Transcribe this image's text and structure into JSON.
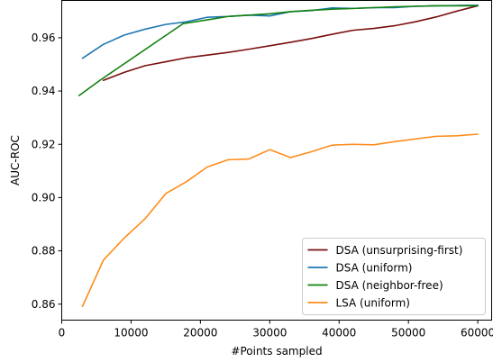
{
  "chart_data": {
    "type": "line",
    "title": "",
    "xlabel": "#Points sampled",
    "ylabel": "AUC-ROC",
    "xlim": [
      0,
      62000
    ],
    "ylim": [
      0.854,
      0.974
    ],
    "xticks": [
      0,
      10000,
      20000,
      30000,
      40000,
      50000,
      60000
    ],
    "yticks": [
      0.86,
      0.88,
      0.9,
      0.92,
      0.94,
      0.96
    ],
    "xtick_labels": [
      "0",
      "10000",
      "20000",
      "30000",
      "40000",
      "50000",
      "60000"
    ],
    "ytick_labels": [
      "0.86",
      "0.88",
      "0.90",
      "0.92",
      "0.94",
      "0.96"
    ],
    "grid": false,
    "legend_position": "lower-right",
    "series": [
      {
        "name": "DSA (unsurprising-first)",
        "color": "#7a0f0f",
        "points": [
          [
            6000,
            0.944
          ],
          [
            9000,
            0.947
          ],
          [
            12000,
            0.9495
          ],
          [
            15000,
            0.951
          ],
          [
            18000,
            0.9525
          ],
          [
            21000,
            0.9535
          ],
          [
            24000,
            0.9545
          ],
          [
            27000,
            0.9557
          ],
          [
            30000,
            0.957
          ],
          [
            33000,
            0.9583
          ],
          [
            36000,
            0.9597
          ],
          [
            39000,
            0.9613
          ],
          [
            42000,
            0.9628
          ],
          [
            45000,
            0.9635
          ],
          [
            48000,
            0.9645
          ],
          [
            51000,
            0.966
          ],
          [
            54000,
            0.9678
          ],
          [
            57000,
            0.97
          ],
          [
            60000,
            0.972
          ]
        ]
      },
      {
        "name": "DSA (uniform)",
        "color": "#1f77b4",
        "points": [
          [
            3000,
            0.9523
          ],
          [
            6000,
            0.9575
          ],
          [
            9000,
            0.961
          ],
          [
            12000,
            0.9632
          ],
          [
            15000,
            0.965
          ],
          [
            18000,
            0.966
          ],
          [
            21000,
            0.9677
          ],
          [
            24000,
            0.968
          ],
          [
            27000,
            0.9685
          ],
          [
            30000,
            0.9682
          ],
          [
            33000,
            0.9698
          ],
          [
            36000,
            0.9702
          ],
          [
            39000,
            0.9712
          ],
          [
            42000,
            0.971
          ],
          [
            45000,
            0.9713
          ],
          [
            48000,
            0.9713
          ],
          [
            51000,
            0.9718
          ],
          [
            54000,
            0.972
          ],
          [
            57000,
            0.9721
          ],
          [
            60000,
            0.9722
          ]
        ]
      },
      {
        "name": "DSA (neighbor-free)",
        "color": "#108010",
        "points": [
          [
            2500,
            0.9383
          ],
          [
            5500,
            0.944
          ],
          [
            17500,
            0.9653
          ],
          [
            21000,
            0.9667
          ],
          [
            24000,
            0.968
          ],
          [
            27000,
            0.9685
          ],
          [
            30000,
            0.969
          ],
          [
            33000,
            0.9698
          ],
          [
            36000,
            0.9703
          ],
          [
            39000,
            0.9707
          ],
          [
            42000,
            0.971
          ],
          [
            45000,
            0.9713
          ],
          [
            48000,
            0.9716
          ],
          [
            51000,
            0.9718
          ],
          [
            54000,
            0.972
          ],
          [
            57000,
            0.972
          ],
          [
            60000,
            0.972
          ]
        ]
      },
      {
        "name": "LSA (uniform)",
        "color": "#ff8c1a",
        "points": [
          [
            3000,
            0.8592
          ],
          [
            6000,
            0.8765
          ],
          [
            9000,
            0.8848
          ],
          [
            12000,
            0.892
          ],
          [
            15000,
            0.9015
          ],
          [
            18000,
            0.906
          ],
          [
            21000,
            0.9115
          ],
          [
            24000,
            0.9142
          ],
          [
            27000,
            0.9145
          ],
          [
            30000,
            0.918
          ],
          [
            33000,
            0.915
          ],
          [
            36000,
            0.9172
          ],
          [
            39000,
            0.9197
          ],
          [
            42000,
            0.92
          ],
          [
            45000,
            0.9198
          ],
          [
            48000,
            0.921
          ],
          [
            51000,
            0.922
          ],
          [
            54000,
            0.923
          ],
          [
            57000,
            0.9232
          ],
          [
            60000,
            0.9238
          ]
        ]
      }
    ]
  }
}
